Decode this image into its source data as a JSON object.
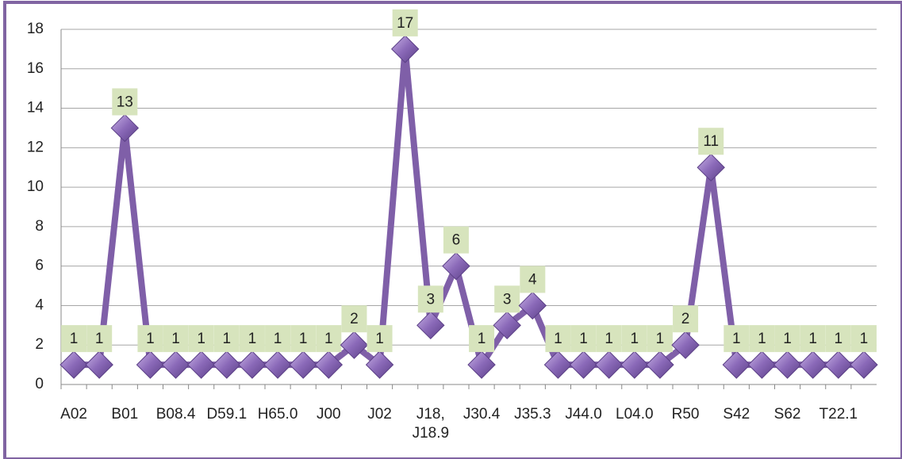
{
  "chart_data": {
    "type": "line",
    "categories": [
      "A02",
      null,
      "B01",
      null,
      "B08.4",
      null,
      "D59.1",
      null,
      "H65.0",
      null,
      "J00",
      null,
      "J02",
      null,
      "J18, J18.9",
      null,
      "J30.4",
      null,
      "J35.3",
      null,
      "J44.0",
      null,
      "L04.0",
      null,
      "R50",
      null,
      "S42",
      null,
      "S62",
      null,
      "T22.1",
      null
    ],
    "values": [
      1,
      1,
      13,
      1,
      1,
      1,
      1,
      1,
      1,
      1,
      1,
      2,
      1,
      17,
      3,
      6,
      1,
      3,
      4,
      1,
      1,
      1,
      1,
      1,
      2,
      11,
      1,
      1,
      1,
      1,
      1,
      1
    ],
    "color": "#7f5fa8",
    "ylim": [
      0,
      18
    ],
    "yticks": [
      0,
      2,
      4,
      6,
      8,
      10,
      12,
      14,
      16,
      18
    ],
    "grid": true
  }
}
